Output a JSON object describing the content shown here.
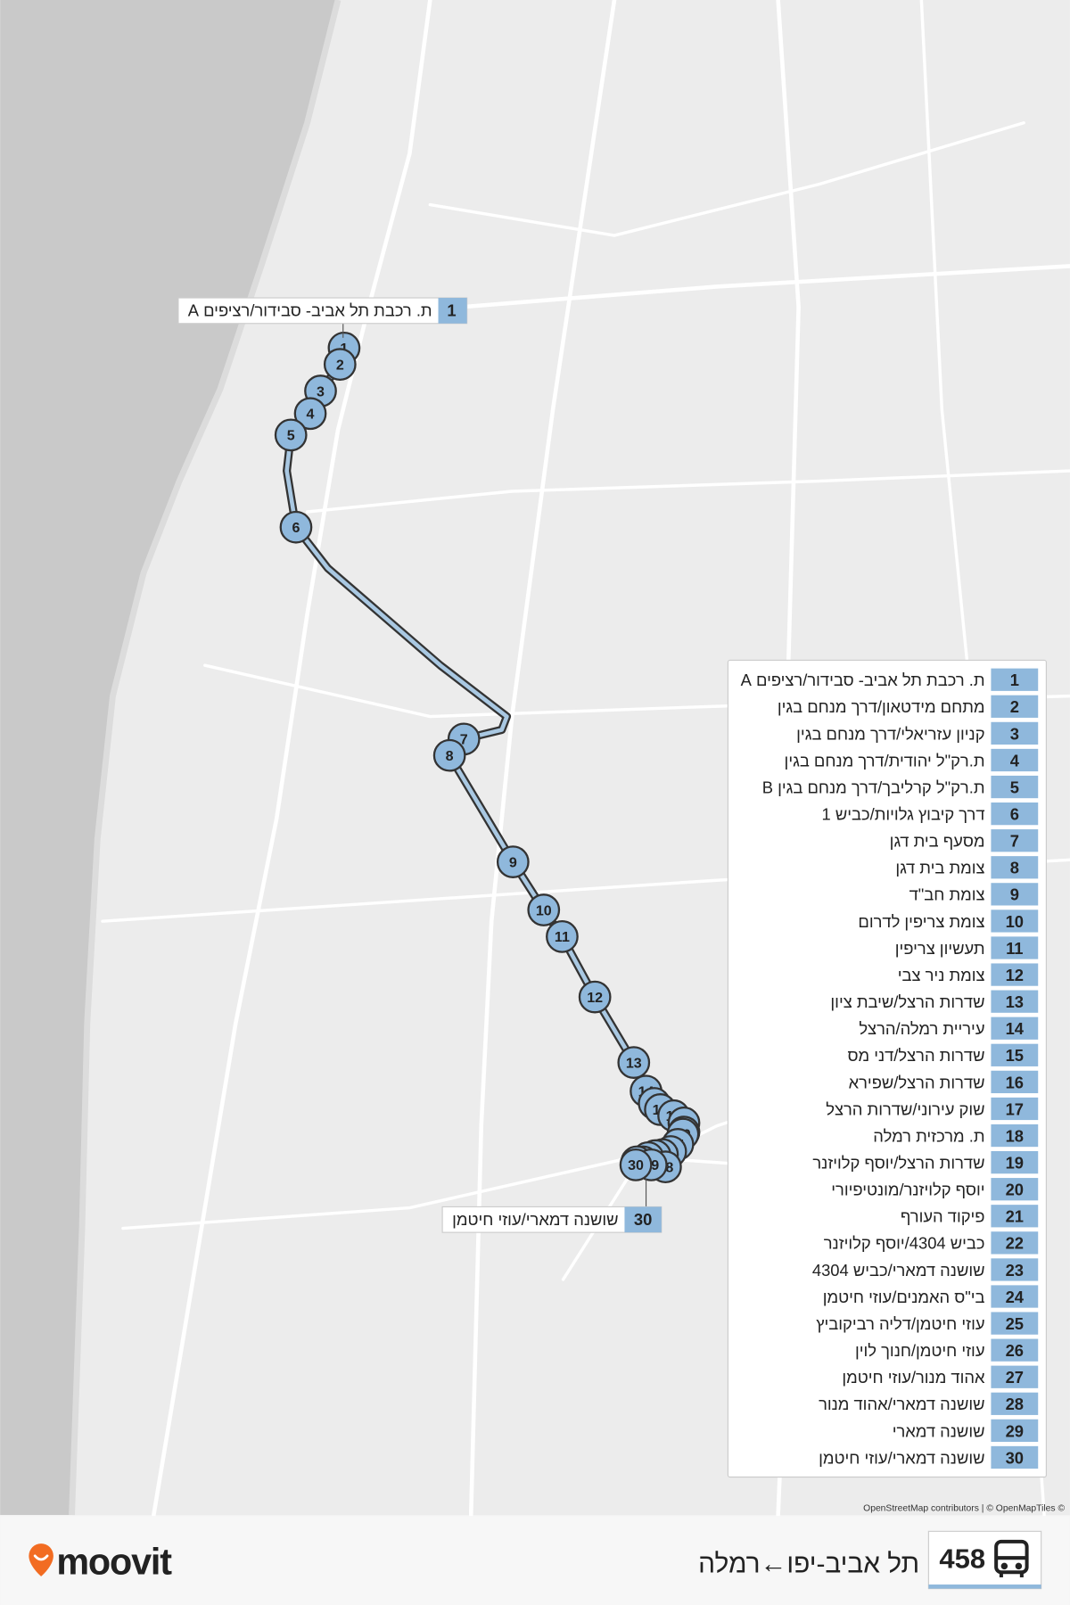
{
  "route": {
    "number": "458",
    "name": "תל אביב-יפו←רמלה"
  },
  "brand": "moovit",
  "attribution": "OpenStreetMap contributors | © OpenMapTiles ©",
  "stops": [
    {
      "number": 1,
      "name": "ת. רכבת תל אביב- סבידור/רציפים A"
    },
    {
      "number": 2,
      "name": "מתחם מידטאון/דרך מנחם בגין"
    },
    {
      "number": 3,
      "name": "קניון עזריאלי/דרך מנחם בגין"
    },
    {
      "number": 4,
      "name": "ת.רק\"ל יהודית/דרך מנחם בגין"
    },
    {
      "number": 5,
      "name": "ת.רק\"ל קרליבך/דרך מנחם בגין B"
    },
    {
      "number": 6,
      "name": "דרך קיבוץ גלויות/כביש 1"
    },
    {
      "number": 7,
      "name": "מסעף בית דגן"
    },
    {
      "number": 8,
      "name": "צומת בית דגן"
    },
    {
      "number": 9,
      "name": "צומת חב\"ד"
    },
    {
      "number": 10,
      "name": "צומת צריפין לדרום"
    },
    {
      "number": 11,
      "name": "תעשיון צריפין"
    },
    {
      "number": 12,
      "name": "צומת ניר צבי"
    },
    {
      "number": 13,
      "name": "שדרות הרצל/שיבת ציון"
    },
    {
      "number": 14,
      "name": "עיריית רמלה/הרצל"
    },
    {
      "number": 15,
      "name": "שדרות הרצל/דני מס"
    },
    {
      "number": 16,
      "name": "שדרות הרצל/שפירא"
    },
    {
      "number": 17,
      "name": "שוק עירוני/שדרות הרצל"
    },
    {
      "number": 18,
      "name": "ת. מרכזית רמלה"
    },
    {
      "number": 19,
      "name": "שדרות הרצל/יוסף קלויזנר"
    },
    {
      "number": 20,
      "name": "יוסף קלויזנר/מונטיפיורי"
    },
    {
      "number": 21,
      "name": "פיקוד העורף"
    },
    {
      "number": 22,
      "name": "כביש 4304/יוסף קלויזנר"
    },
    {
      "number": 23,
      "name": "שושנה דמארי/כביש 4304"
    },
    {
      "number": 24,
      "name": "בי\"ס האמנים/עוזי חיטמן"
    },
    {
      "number": 25,
      "name": "עוזי חיטמן/דליה רביקוביץ"
    },
    {
      "number": 26,
      "name": "עוזי חיטמן/חנוך לוין"
    },
    {
      "number": 27,
      "name": "אהוד מנור/עוזי חיטמן"
    },
    {
      "number": 28,
      "name": "שושנה דמארי/אהוד מנור"
    },
    {
      "number": 29,
      "name": "שושנה דמארי"
    },
    {
      "number": 30,
      "name": "שושנה דמארי/עוזי חיטמן"
    }
  ]
}
